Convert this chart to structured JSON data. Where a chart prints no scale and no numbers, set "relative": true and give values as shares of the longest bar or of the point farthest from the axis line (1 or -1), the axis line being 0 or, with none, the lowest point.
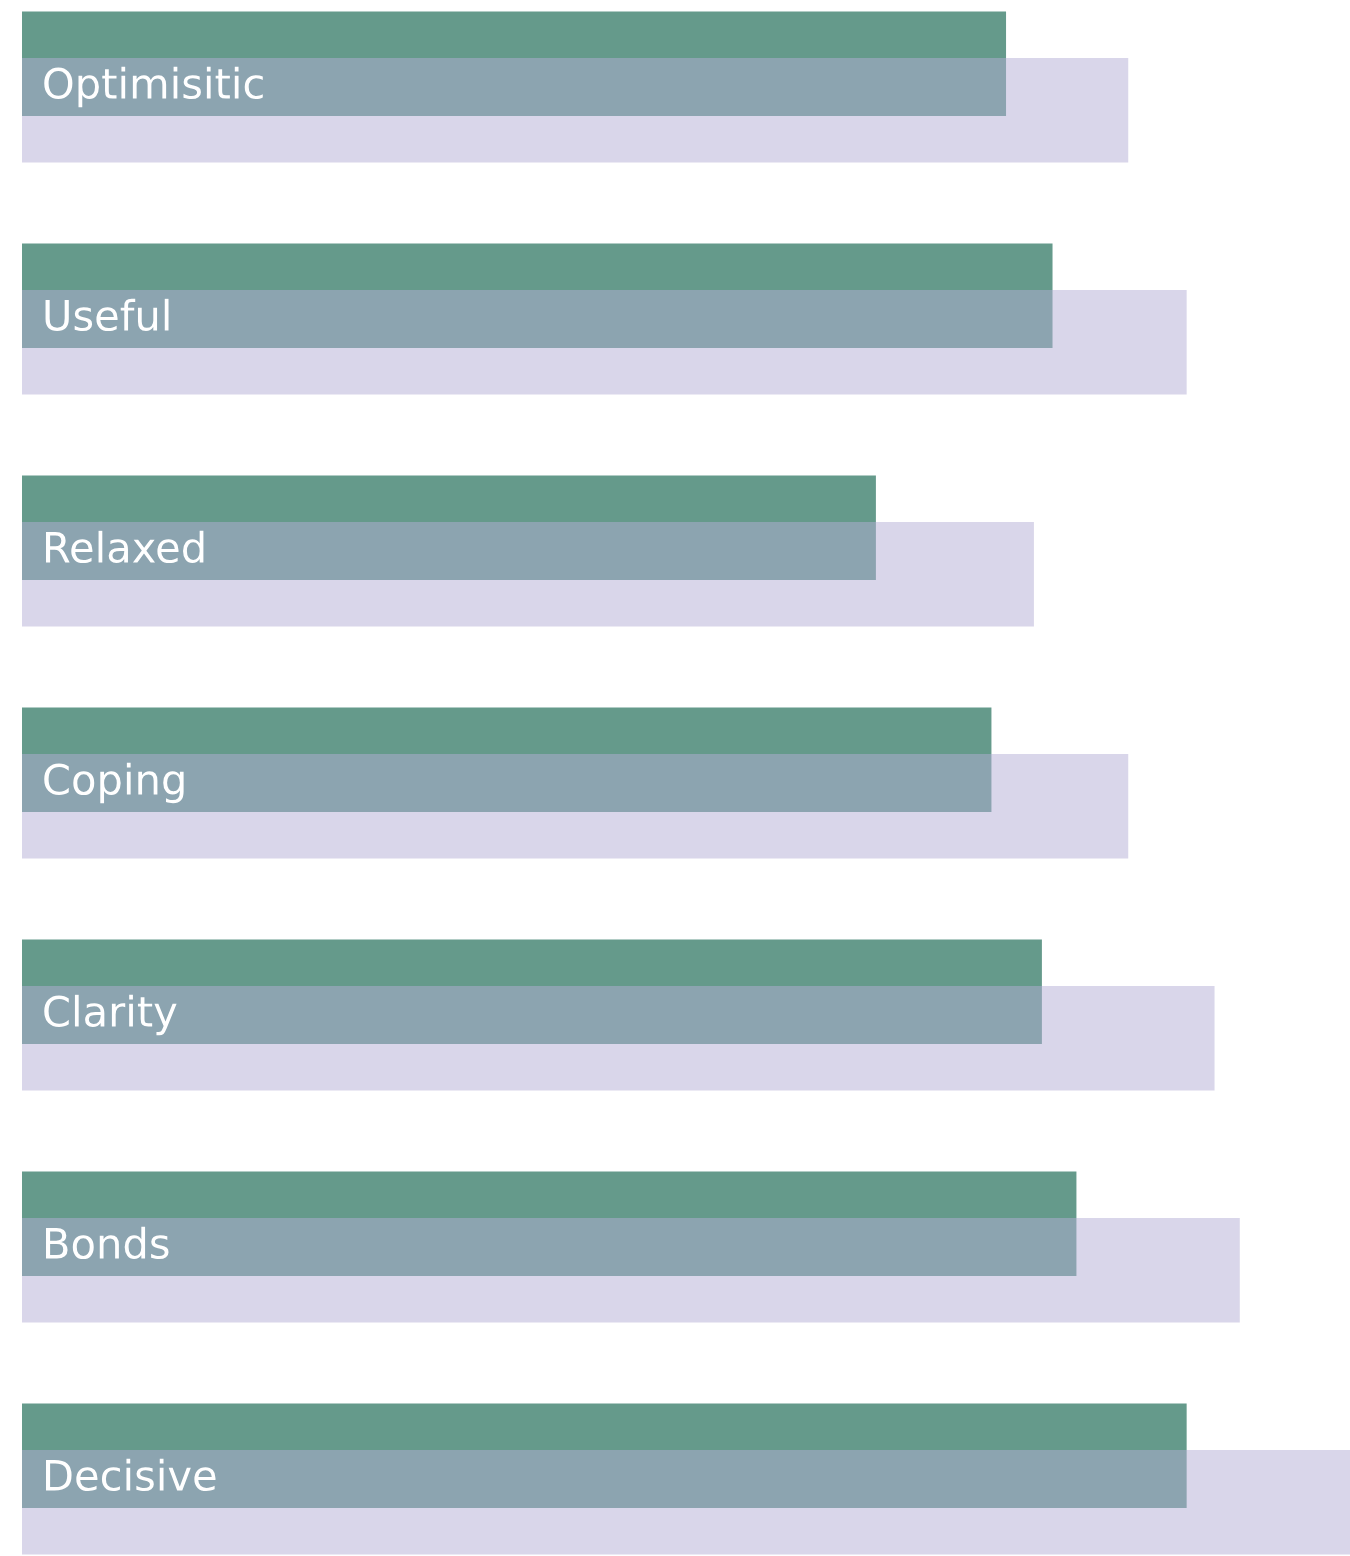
{
  "chart_data": {
    "type": "bar",
    "orientation": "horizontal",
    "relative": true,
    "categories": [
      "Optimisitic",
      "Useful",
      "Relaxed",
      "Coping",
      "Clarity",
      "Bonds",
      "Decisive"
    ],
    "series": [
      {
        "color": "#659a8b",
        "values": [
          0.741,
          0.776,
          0.643,
          0.73,
          0.768,
          0.794,
          0.877
        ]
      },
      {
        "color": "#d9d6ea",
        "values": [
          0.833,
          0.877,
          0.762,
          0.833,
          0.898,
          0.917,
          1.0
        ]
      }
    ],
    "legend": false
  }
}
